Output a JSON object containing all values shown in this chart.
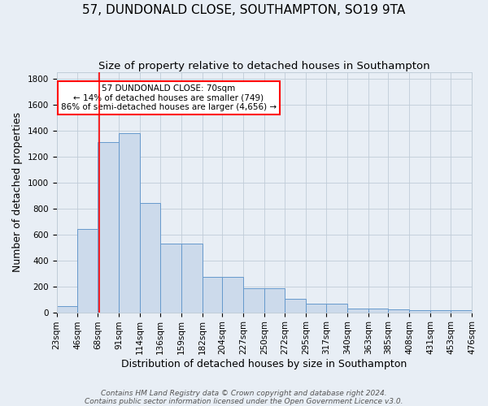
{
  "title": "57, DUNDONALD CLOSE, SOUTHAMPTON, SO19 9TA",
  "subtitle": "Size of property relative to detached houses in Southampton",
  "xlabel": "Distribution of detached houses by size in Southampton",
  "ylabel": "Number of detached properties",
  "bar_color": "#ccdaeb",
  "bar_edge_color": "#6699cc",
  "red_line_x": 70,
  "annotation_text": "57 DUNDONALD CLOSE: 70sqm\n← 14% of detached houses are smaller (749)\n86% of semi-detached houses are larger (4,656) →",
  "annotation_box_color": "white",
  "annotation_box_edge_color": "red",
  "footer": "Contains HM Land Registry data © Crown copyright and database right 2024.\nContains public sector information licensed under the Open Government Licence v3.0.",
  "bin_edges": [
    23,
    46,
    68,
    91,
    114,
    136,
    159,
    182,
    204,
    227,
    250,
    272,
    295,
    317,
    340,
    363,
    385,
    408,
    431,
    453,
    476
  ],
  "bar_heights": [
    50,
    640,
    1310,
    1380,
    840,
    530,
    530,
    275,
    275,
    185,
    185,
    105,
    65,
    65,
    30,
    30,
    20,
    15,
    15,
    15
  ],
  "ylim": [
    0,
    1850
  ],
  "yticks": [
    0,
    200,
    400,
    600,
    800,
    1000,
    1200,
    1400,
    1600,
    1800
  ],
  "background_color": "#e8eef5",
  "grid_color": "#c0ccd8",
  "title_fontsize": 11,
  "subtitle_fontsize": 9.5,
  "axis_label_fontsize": 9,
  "tick_fontsize": 7.5,
  "footer_fontsize": 6.5,
  "annotation_fontsize": 7.5
}
